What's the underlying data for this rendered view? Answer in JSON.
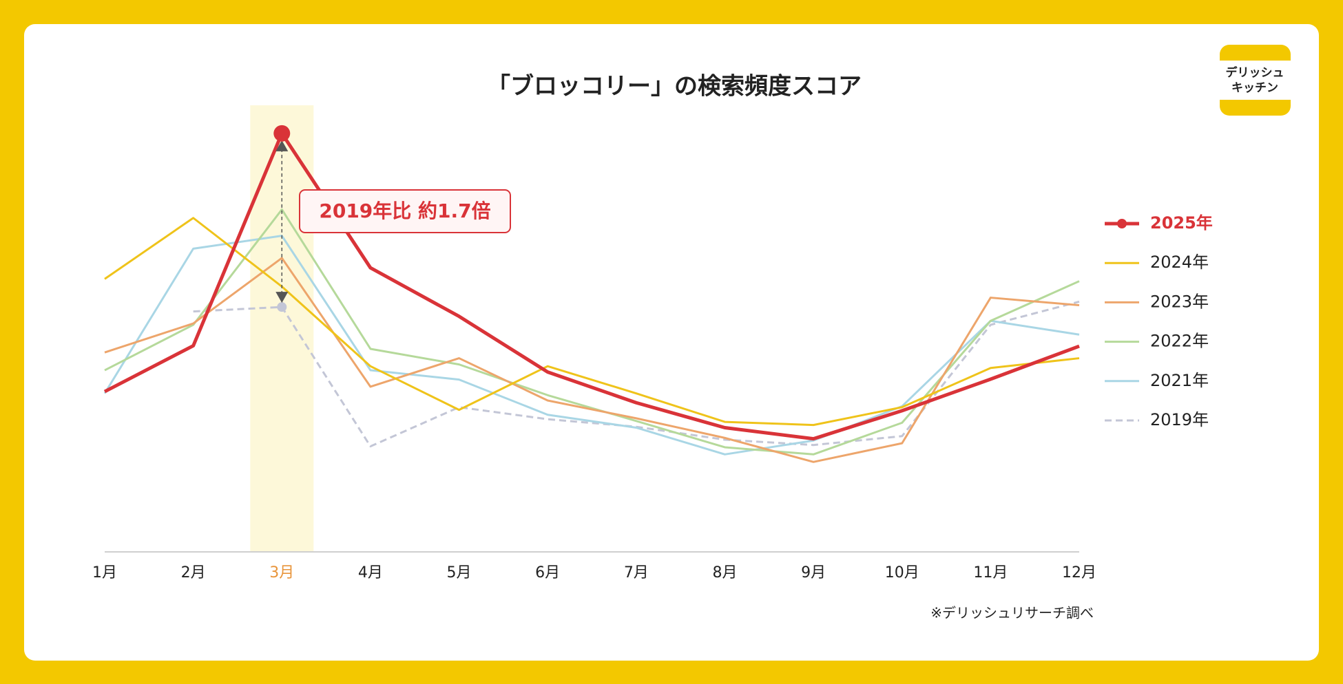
{
  "chart_data": {
    "type": "line",
    "title": "「ブロッコリー」の検索頻度スコア",
    "categories": [
      "1月",
      "2月",
      "3月",
      "4月",
      "5月",
      "6月",
      "7月",
      "8月",
      "9月",
      "10月",
      "11月",
      "12月"
    ],
    "ylim": [
      0,
      100
    ],
    "highlight_index": 2,
    "highlight_color": "#e8943a",
    "annotation": "2019年比 約1.7倍",
    "note": "※デリッシュリサーチ調べ",
    "series": [
      {
        "name": "2025年",
        "color": "#d93338",
        "line_style": "bold",
        "values": [
          36,
          46.3,
          94,
          63.8,
          52.9,
          40.4,
          33.5,
          27.9,
          25.4,
          31.7,
          38.8,
          46.2
        ]
      },
      {
        "name": "2024年",
        "color": "#efc31a",
        "line_style": "solid",
        "values": [
          61.3,
          75,
          59.6,
          41.7,
          31.9,
          41.7,
          35.6,
          29.2,
          28.5,
          32.5,
          41.3,
          43.5
        ]
      },
      {
        "name": "2023年",
        "color": "#eda56b",
        "line_style": "solid",
        "values": [
          44.8,
          51.3,
          66,
          37.1,
          43.5,
          34,
          30,
          25.6,
          20.2,
          24.4,
          57.1,
          55.4
        ]
      },
      {
        "name": "2022年",
        "color": "#b5d99a",
        "line_style": "solid",
        "values": [
          40.8,
          51,
          76.9,
          45.6,
          42.1,
          35.2,
          29.4,
          23.5,
          21.9,
          29,
          51.9,
          60.8
        ]
      },
      {
        "name": "2021年",
        "color": "#a9d6e5",
        "line_style": "solid",
        "values": [
          35.6,
          68.1,
          71,
          40.8,
          38.7,
          30.8,
          27.9,
          21.9,
          25,
          32.7,
          51.9,
          48.8
        ]
      },
      {
        "name": "2019年",
        "color": "#c3c6d6",
        "line_style": "dashed",
        "values": [
          null,
          54,
          55,
          23.7,
          32.5,
          29.8,
          28.1,
          25.2,
          24,
          26,
          51,
          56.2
        ]
      }
    ]
  },
  "logo": {
    "lines": [
      "デリッシュ",
      "キッチン"
    ]
  }
}
